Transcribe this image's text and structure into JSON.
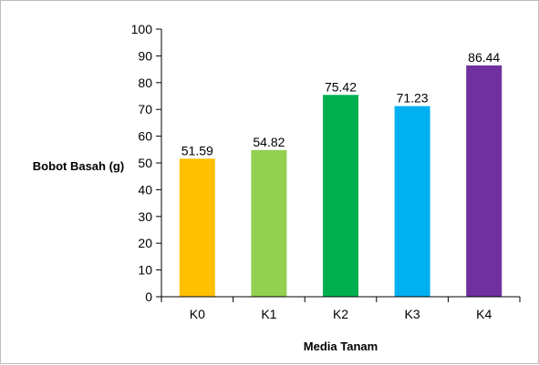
{
  "chart_data": {
    "type": "bar",
    "title": "",
    "xlabel": "Media Tanam",
    "ylabel": "Bobot Basah (g)",
    "categories": [
      "K0",
      "K1",
      "K2",
      "K3",
      "K4"
    ],
    "values": [
      51.59,
      54.82,
      75.42,
      71.23,
      86.44
    ],
    "value_labels": [
      "51.59",
      "54.82",
      "75.42",
      "71.23",
      "86.44"
    ],
    "colors": [
      "#FFC000",
      "#92D050",
      "#00B050",
      "#00B0F0",
      "#7030A0"
    ],
    "ylim": [
      0,
      100
    ],
    "yticks": [
      0,
      10,
      20,
      30,
      40,
      50,
      60,
      70,
      80,
      90,
      100
    ],
    "grid": false,
    "legend": "none"
  }
}
